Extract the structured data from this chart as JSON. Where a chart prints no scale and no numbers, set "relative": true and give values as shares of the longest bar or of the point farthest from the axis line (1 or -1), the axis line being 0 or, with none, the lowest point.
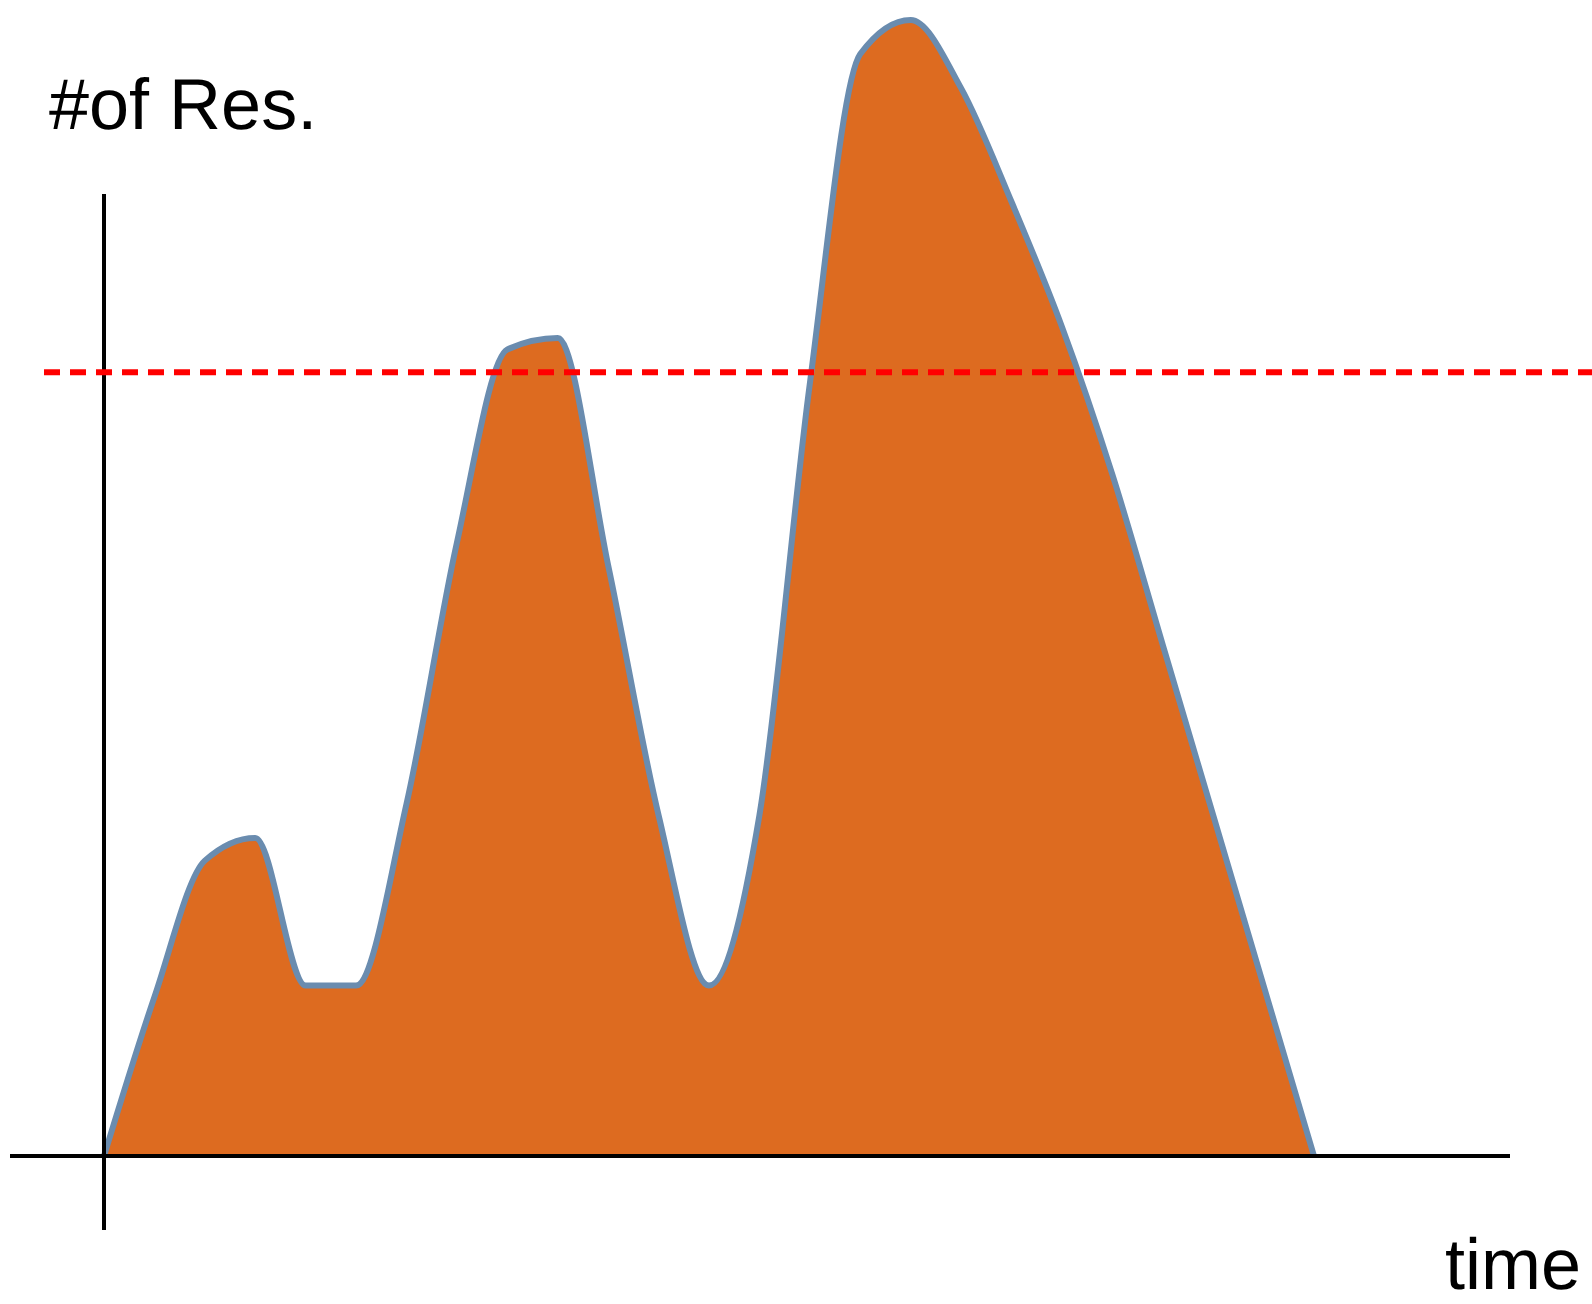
{
  "chart_data": {
    "type": "area",
    "relative": true,
    "xlabel": "time",
    "ylabel": "#of Res.",
    "categories": [
      null,
      null,
      null,
      null,
      null,
      null,
      null,
      null,
      null,
      null,
      null,
      null,
      null,
      null,
      null,
      null,
      null,
      null,
      null,
      null,
      null,
      null,
      null,
      null,
      null
    ],
    "series": [
      {
        "color": "#dd6b20",
        "values": [
          0,
          0.14,
          0.26,
          0.28,
          0.15,
          0.15,
          0.31,
          0.54,
          0.71,
          0.72,
          0.52,
          0.3,
          0.15,
          0.3,
          0.68,
          0.97,
          1,
          0.94,
          0.84,
          0.73,
          0.6,
          0.45,
          0.3,
          0.15,
          0
        ]
      }
    ],
    "ref_lines": [
      {
        "axis": "y",
        "value": 0.69,
        "color": "#ff0000",
        "line_style": "dashed"
      }
    ]
  }
}
